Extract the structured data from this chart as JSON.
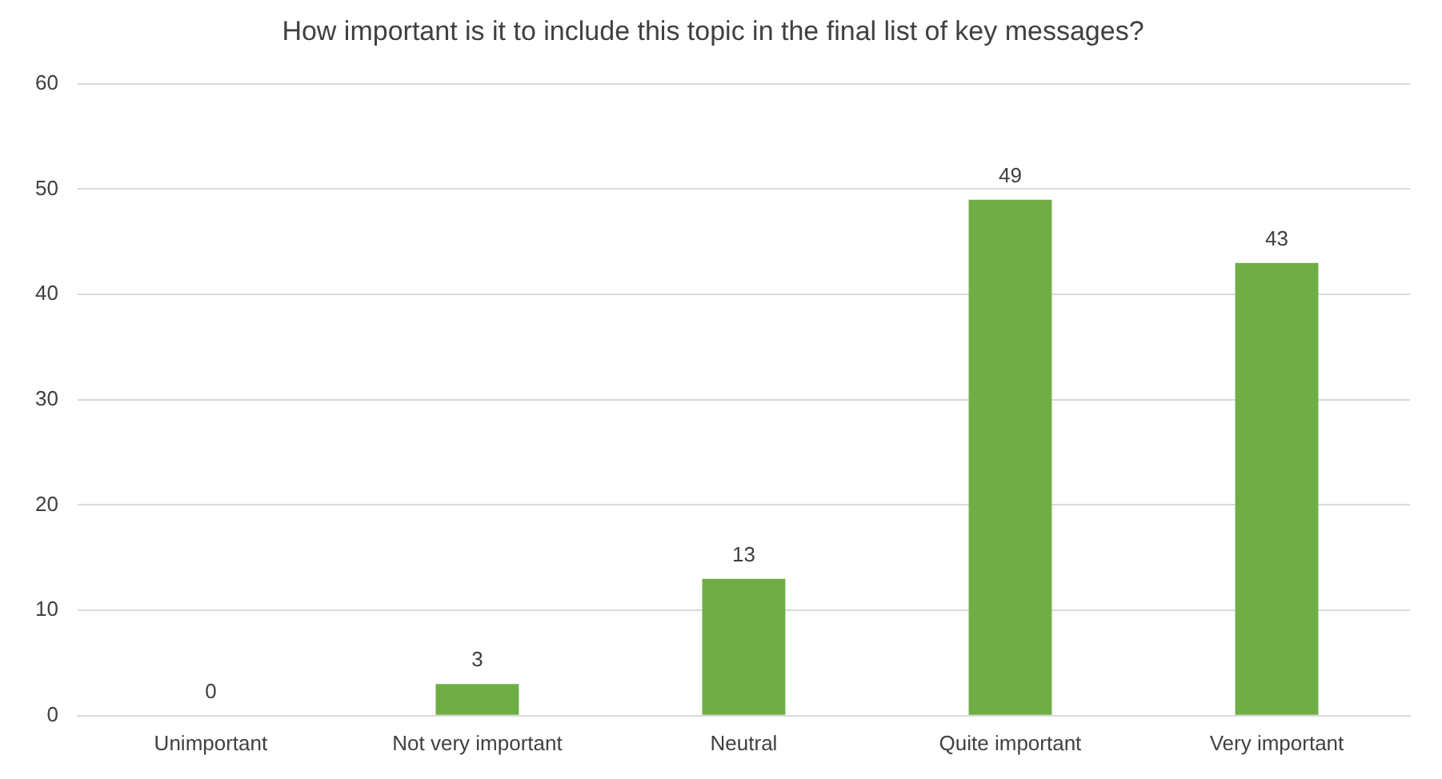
{
  "chart_data": {
    "type": "bar",
    "title": "How important is it to include this topic in the final list of key messages?",
    "categories": [
      "Unimportant",
      "Not very important",
      "Neutral",
      "Quite important",
      "Very important"
    ],
    "values": [
      0,
      3,
      13,
      49,
      43
    ],
    "color": "#70ad47",
    "ylim": [
      0,
      60
    ],
    "yticks": [
      0,
      10,
      20,
      30,
      40,
      50,
      60
    ],
    "grid": "y",
    "data_labels": true,
    "legend": false
  }
}
